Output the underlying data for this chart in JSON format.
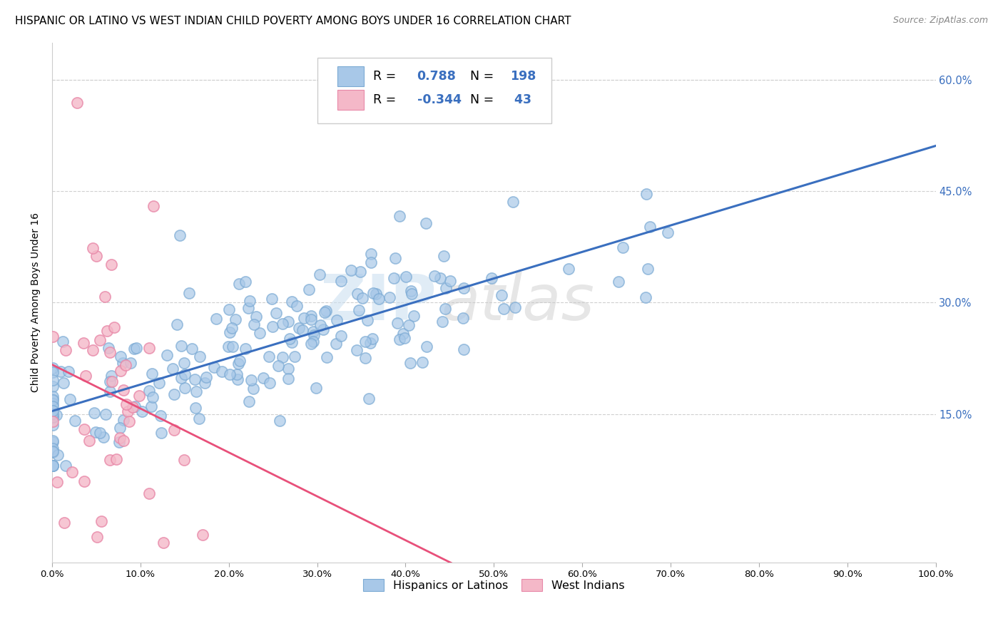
{
  "title": "HISPANIC OR LATINO VS WEST INDIAN CHILD POVERTY AMONG BOYS UNDER 16 CORRELATION CHART",
  "source": "Source: ZipAtlas.com",
  "ylabel": "Child Poverty Among Boys Under 16",
  "watermark_zip": "ZIP",
  "watermark_atlas": "atlas",
  "hispanic_R": 0.788,
  "hispanic_N": 198,
  "westindian_R": -0.344,
  "westindian_N": 43,
  "hispanic_color": "#a8c8e8",
  "westindian_color": "#f4b8c8",
  "hispanic_edge_color": "#7baad4",
  "westindian_edge_color": "#e888a8",
  "hispanic_line_color": "#3a6fbf",
  "westindian_line_color": "#e8507a",
  "xlim": [
    0,
    1.0
  ],
  "ylim": [
    -0.05,
    0.65
  ],
  "ytick_positions": [
    0.15,
    0.3,
    0.45,
    0.6
  ],
  "ytick_labels": [
    "15.0%",
    "30.0%",
    "45.0%",
    "60.0%"
  ],
  "xtick_positions": [
    0.0,
    0.1,
    0.2,
    0.3,
    0.4,
    0.5,
    0.6,
    0.7,
    0.8,
    0.9,
    1.0
  ],
  "xtick_labels": [
    "0.0%",
    "10.0%",
    "20.0%",
    "30.0%",
    "40.0%",
    "50.0%",
    "60.0%",
    "70.0%",
    "80.0%",
    "90.0%",
    "100.0%"
  ],
  "legend_label_hispanic": "Hispanics or Latinos",
  "legend_label_westindian": "West Indians",
  "background_color": "#ffffff",
  "grid_color": "#d0d0d0",
  "title_fontsize": 11,
  "axis_label_fontsize": 10,
  "tick_fontsize": 9.5,
  "seed": 12345
}
